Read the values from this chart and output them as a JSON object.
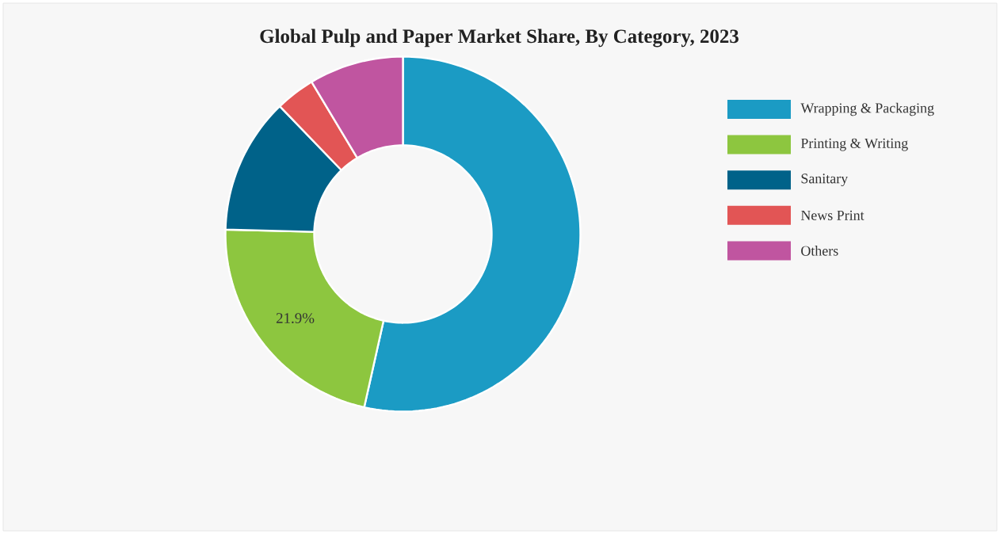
{
  "chart_data": {
    "type": "donut",
    "title": "Global Pulp and Paper Market Share, By Category, 2023",
    "categories": [
      "Wrapping & Packaging",
      "Printing & Writing",
      "Sanitary",
      "News Print",
      "Others"
    ],
    "values": [
      53.5,
      21.9,
      12.4,
      3.6,
      8.6
    ],
    "colors": [
      "#1b9bc4",
      "#8dc63f",
      "#006289",
      "#e25555",
      "#c055a0"
    ],
    "value_labels": [
      null,
      "21.9%",
      null,
      null,
      null
    ],
    "legend": "right"
  }
}
